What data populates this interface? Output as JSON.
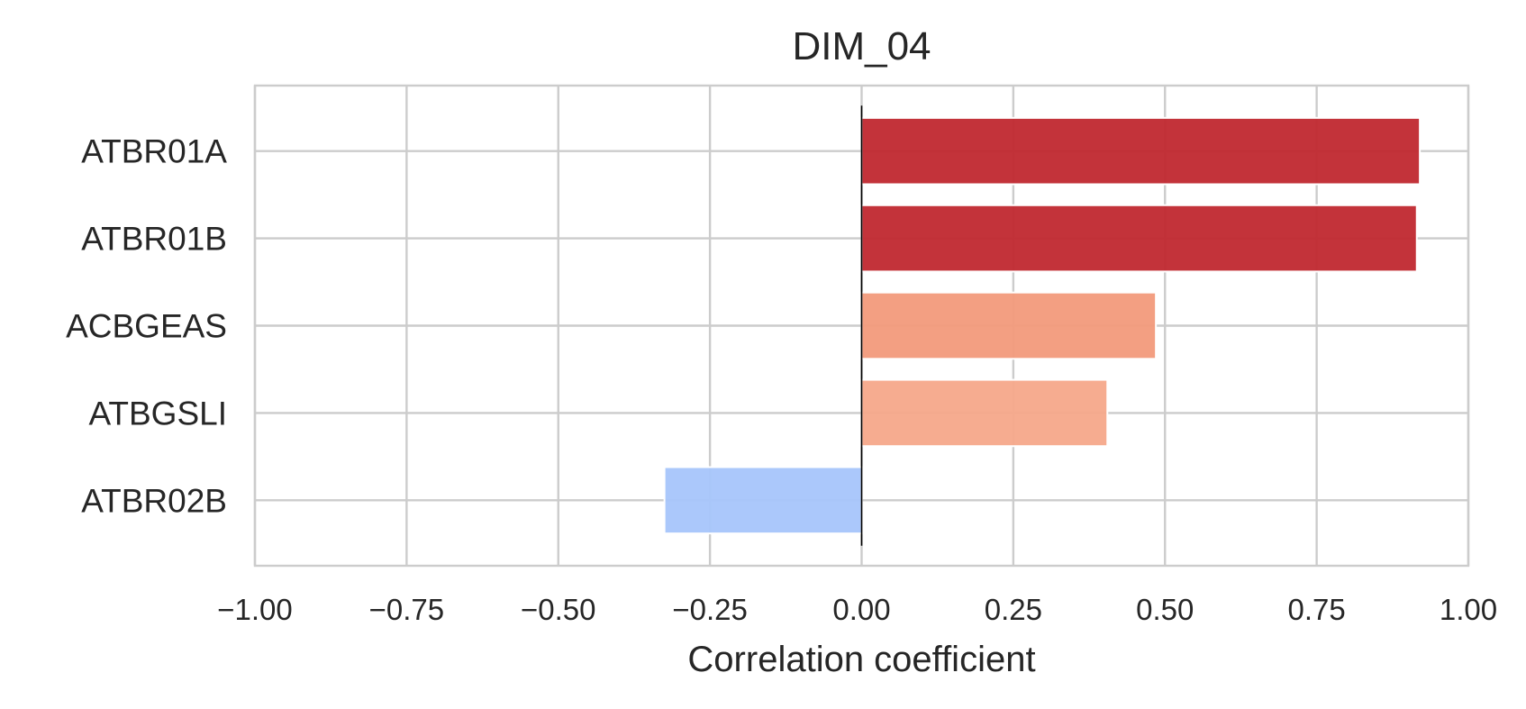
{
  "chart_data": {
    "type": "bar",
    "orientation": "horizontal",
    "title": "DIM_04",
    "xlabel": "Correlation coefficient",
    "ylabel": "",
    "xlim": [
      -1.0,
      1.0
    ],
    "x_ticks": [
      "−1.00",
      "−0.75",
      "−0.50",
      "−0.25",
      "0.00",
      "0.25",
      "0.50",
      "0.75",
      "1.00"
    ],
    "x_tick_values": [
      -1.0,
      -0.75,
      -0.5,
      -0.25,
      0.0,
      0.25,
      0.5,
      0.75,
      1.0
    ],
    "categories": [
      "ATBR01A",
      "ATBR01B",
      "ACBGEAS",
      "ATBGSLI",
      "ATBR02B"
    ],
    "values": [
      0.92,
      0.915,
      0.485,
      0.405,
      -0.325
    ],
    "bar_colors": [
      "#c0282f",
      "#c0282f",
      "#f29a7b",
      "#f6a88a",
      "#a7c5fb"
    ],
    "grid": true,
    "zero_line": true,
    "legend": "none"
  }
}
